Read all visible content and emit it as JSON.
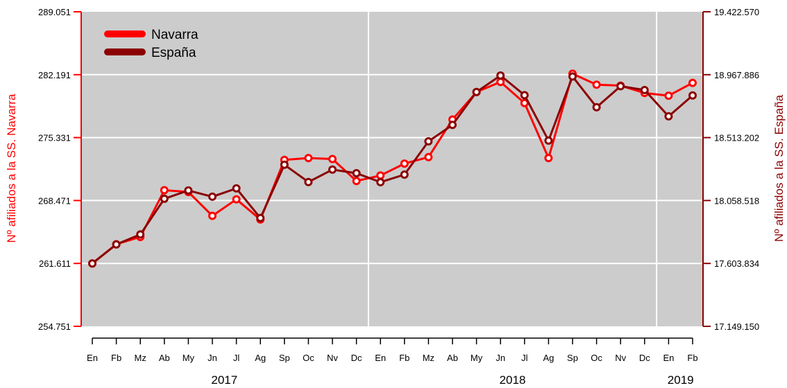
{
  "chart_data": {
    "type": "line",
    "months": [
      "En",
      "Fb",
      "Mz",
      "Ab",
      "My",
      "Jn",
      "Jl",
      "Ag",
      "Sp",
      "Oc",
      "Nv",
      "Dc",
      "En",
      "Fb",
      "Mz",
      "Ab",
      "My",
      "Jn",
      "Jl",
      "Ag",
      "Sp",
      "Oc",
      "Nv",
      "Dc",
      "En",
      "Fb"
    ],
    "years": [
      {
        "label": "2017",
        "from": 0,
        "to": 11
      },
      {
        "label": "2018",
        "from": 12,
        "to": 23
      },
      {
        "label": "2019",
        "from": 24,
        "to": 25
      }
    ],
    "left_axis": {
      "label": "Nº afiliados a la SS. Navarra",
      "min": 254751,
      "max": 289051,
      "ticks": [
        "254.751",
        "261.611",
        "268.471",
        "275.331",
        "282.191",
        "289.051"
      ],
      "color": "#ff0000"
    },
    "right_axis": {
      "label": "Nº afiliados a la SS. España",
      "min": 17149150,
      "max": 19422570,
      "ticks": [
        "17.149.150",
        "17.603.834",
        "18.058.518",
        "18.513.202",
        "18.967.886",
        "19.422.570"
      ],
      "color": "#8b0000"
    },
    "series": [
      {
        "name": "Navarra",
        "axis": "left",
        "color": "#ff0000",
        "values": [
          261611,
          263700,
          264500,
          269600,
          269400,
          266800,
          268600,
          266400,
          272900,
          273100,
          273000,
          270600,
          271200,
          272500,
          273200,
          277300,
          280300,
          281400,
          279100,
          273100,
          282300,
          281100,
          281000,
          280200,
          279900,
          281300
        ]
      },
      {
        "name": "España",
        "axis": "right",
        "color": "#8b0000",
        "values": [
          17603834,
          17741000,
          17813000,
          18071000,
          18131000,
          18086000,
          18146000,
          17932000,
          18317000,
          18192000,
          18282000,
          18256000,
          18191000,
          18246000,
          18486000,
          18605000,
          18843000,
          18962000,
          18820000,
          18492000,
          18955000,
          18733000,
          18885000,
          18857000,
          18667000,
          18818000
        ]
      }
    ],
    "legend": {
      "entries": [
        "Navarra",
        "España"
      ],
      "position": "top-left"
    },
    "background": "#cccccc",
    "grid": true
  }
}
